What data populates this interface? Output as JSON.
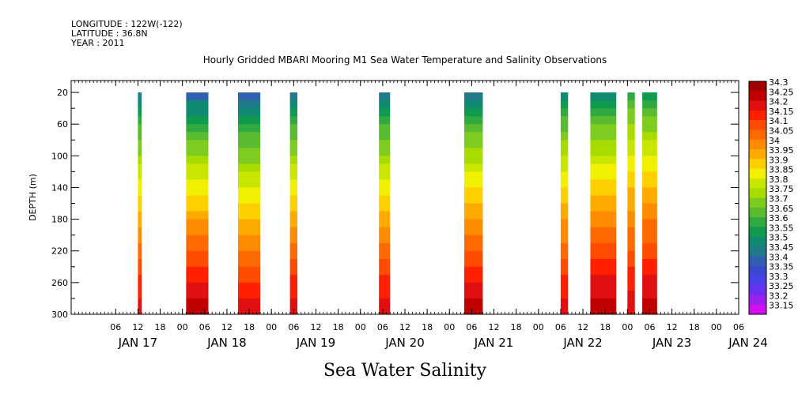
{
  "header": {
    "longitude": "LONGITUDE : 122W(-122)",
    "latitude": "LATITUDE : 36.8N",
    "year": "YEAR : 2011"
  },
  "chart_data": {
    "type": "heatmap",
    "title": "Hourly Gridded MBARI Mooring M1 Sea Water Temperature and Salinity Observations",
    "subtitle": "Sea Water Salinity",
    "xlabel": "",
    "ylabel": "DEPTH (m)",
    "ylim": [
      300,
      0
    ],
    "y_ticks": [
      20,
      60,
      100,
      140,
      180,
      220,
      260,
      300
    ],
    "hour_ticks": [
      "06",
      "12",
      "18",
      "00",
      "06",
      "12",
      "18",
      "00",
      "06",
      "12",
      "18",
      "00",
      "06",
      "12",
      "18",
      "00",
      "06",
      "12",
      "18",
      "00",
      "06",
      "12",
      "18",
      "00",
      "06",
      "12",
      "18",
      "00",
      "06",
      "12",
      "18",
      "00"
    ],
    "date_labels": [
      "JAN 17",
      "JAN 18",
      "JAN 19",
      "JAN 20",
      "JAN 21",
      "JAN 22",
      "JAN 23",
      "JAN 24"
    ],
    "colorbar": {
      "levels": [
        "34.3",
        "34.25",
        "34.2",
        "34.15",
        "34.1",
        "34.05",
        "34",
        "33.95",
        "33.9",
        "33.85",
        "33.8",
        "33.75",
        "33.7",
        "33.65",
        "33.6",
        "33.55",
        "33.5",
        "33.45",
        "33.4",
        "33.35",
        "33.3",
        "33.25",
        "33.2",
        "33.15"
      ],
      "colors": [
        "#a00000",
        "#c00000",
        "#e01010",
        "#ff2000",
        "#ff4d00",
        "#ff6a00",
        "#ff8c00",
        "#ffaa00",
        "#ffd000",
        "#f0f000",
        "#c8e600",
        "#a8dc00",
        "#7fcc20",
        "#58bb30",
        "#30aa40",
        "#109a50",
        "#108a70",
        "#207a8a",
        "#3060b0",
        "#3a48d0",
        "#4a40e8",
        "#6a30f0",
        "#9a20f0",
        "#d010f0"
      ]
    },
    "x_start": "2011-01-16 18:00",
    "x_end": "2011-01-24 06:00",
    "observation_blocks": [
      {
        "start": "2011-01-17 12:00",
        "end": "2011-01-17 12:00",
        "min_depth": 20,
        "max_depth": 300,
        "salinity_top": 33.4,
        "salinity_bottom": 34.2
      },
      {
        "start": "2011-01-18 01:00",
        "end": "2011-01-18 06:00",
        "min_depth": 20,
        "max_depth": 300,
        "salinity_top": 33.35,
        "salinity_bottom": 34.25
      },
      {
        "start": "2011-01-18 15:00",
        "end": "2011-01-18 20:00",
        "min_depth": 20,
        "max_depth": 300,
        "salinity_top": 33.35,
        "salinity_bottom": 34.2
      },
      {
        "start": "2011-01-19 05:00",
        "end": "2011-01-19 06:00",
        "min_depth": 20,
        "max_depth": 300,
        "salinity_top": 33.4,
        "salinity_bottom": 34.2
      },
      {
        "start": "2011-01-20 05:00",
        "end": "2011-01-20 07:00",
        "min_depth": 20,
        "max_depth": 300,
        "salinity_top": 33.4,
        "salinity_bottom": 34.2
      },
      {
        "start": "2011-01-21 04:00",
        "end": "2011-01-21 08:00",
        "min_depth": 20,
        "max_depth": 300,
        "salinity_top": 33.4,
        "salinity_bottom": 34.25
      },
      {
        "start": "2011-01-22 06:00",
        "end": "2011-01-22 07:00",
        "min_depth": 20,
        "max_depth": 300,
        "salinity_top": 33.45,
        "salinity_bottom": 34.2
      },
      {
        "start": "2011-01-22 14:00",
        "end": "2011-01-22 20:00",
        "min_depth": 20,
        "max_depth": 300,
        "salinity_top": 33.45,
        "salinity_bottom": 34.25
      },
      {
        "start": "2011-01-23 00:00",
        "end": "2011-01-23 01:00",
        "min_depth": 20,
        "max_depth": 300,
        "salinity_top": 33.55,
        "salinity_bottom": 34.2
      },
      {
        "start": "2011-01-23 04:00",
        "end": "2011-01-23 07:00",
        "min_depth": 20,
        "max_depth": 300,
        "salinity_top": 33.5,
        "salinity_bottom": 34.25
      }
    ]
  }
}
